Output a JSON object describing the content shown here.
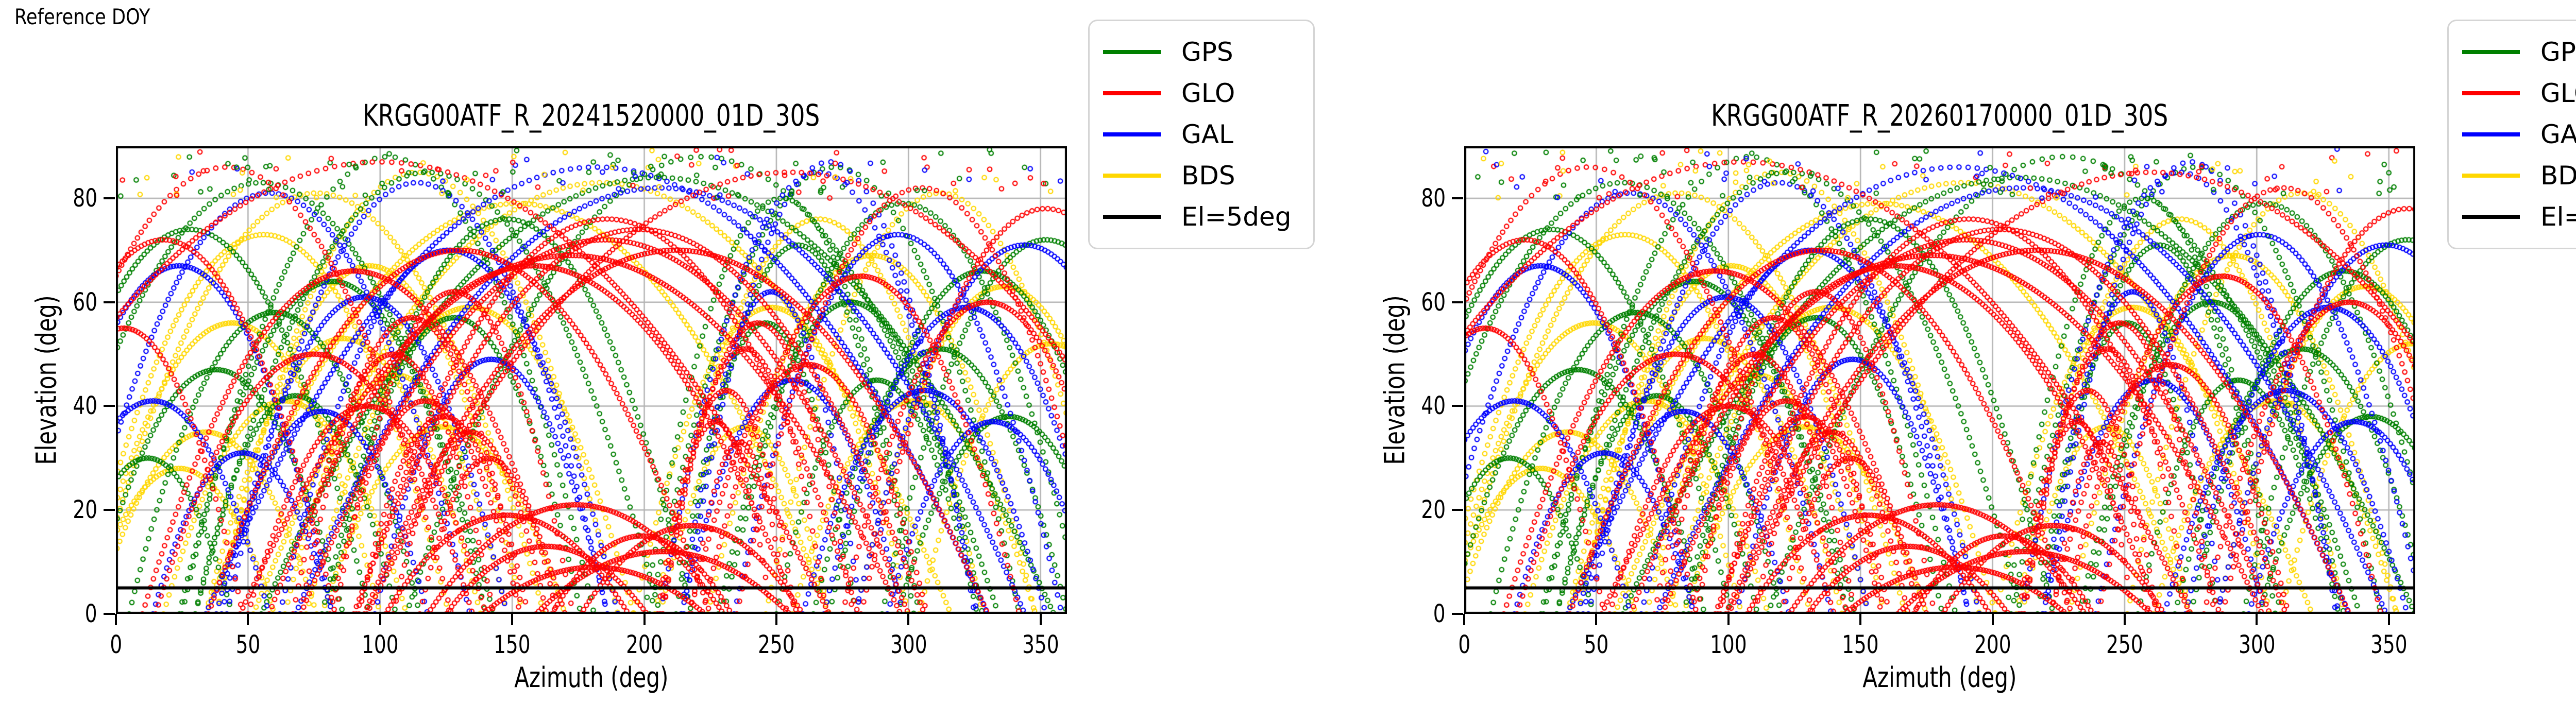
{
  "annotation": {
    "reference_doy": "Reference DOY"
  },
  "legend": {
    "items": [
      {
        "label": "GPS",
        "color": "#008000"
      },
      {
        "label": "GLO",
        "color": "#ff0000"
      },
      {
        "label": "GAL",
        "color": "#0000ff"
      },
      {
        "label": "BDS",
        "color": "#ffd700"
      },
      {
        "label": "El=5deg",
        "color": "#000000"
      }
    ]
  },
  "chart_data": {
    "type": "scatter",
    "marker": "open-circle",
    "xlabel": "Azimuth (deg)",
    "ylabel": "Elevation (deg)",
    "xlim": [
      0,
      360
    ],
    "ylim": [
      0,
      90
    ],
    "xticks": [
      0,
      50,
      100,
      150,
      200,
      250,
      300,
      350
    ],
    "yticks": [
      0,
      20,
      40,
      60,
      80
    ],
    "grid": true,
    "grid_color": "#b3b3b3",
    "elevation_cutoff_deg": 5,
    "cutoff_line_color": "#000000",
    "panels": [
      {
        "title": "KRGG00ATF_R_20241520000_01D_30S",
        "az_shift_deg": 0,
        "seed": 11
      },
      {
        "title": "KRGG00ATF_R_20260170000_01D_30S",
        "az_shift_deg": 5,
        "seed": 47
      }
    ],
    "track_format": "[azimuth_center_deg, azimuth_halfwidth_deg, peak_elevation_deg]; elevation(az)=peak*(1-((az-center)/halfwidth)^2), satellite arcs estimated from figure",
    "draw_order": [
      "BDS",
      "GPS",
      "GAL",
      "GLO"
    ],
    "series": [
      {
        "name": "GPS",
        "color": "#008000",
        "tracks": [
          [
            28,
            68,
            74
          ],
          [
            55,
            88,
            83
          ],
          [
            82,
            58,
            64
          ],
          [
            103,
            78,
            88
          ],
          [
            128,
            48,
            57
          ],
          [
            148,
            70,
            76
          ],
          [
            258,
            44,
            71
          ],
          [
            272,
            70,
            86
          ],
          [
            298,
            68,
            79
          ],
          [
            328,
            58,
            66
          ],
          [
            352,
            62,
            72
          ],
          [
            38,
            48,
            47
          ],
          [
            68,
            38,
            42
          ],
          [
            312,
            48,
            51
          ],
          [
            288,
            38,
            45
          ],
          [
            246,
            34,
            56
          ],
          [
            118,
            88,
            85
          ],
          [
            222,
            112,
            88
          ],
          [
            12,
            32,
            30
          ],
          [
            338,
            42,
            38
          ],
          [
            60,
            55,
            58
          ],
          [
            252,
            52,
            80
          ],
          [
            278,
            50,
            60
          ],
          [
            205,
            150,
            84
          ]
        ]
      },
      {
        "name": "GLO",
        "color": "#ff0000",
        "tracks": [
          [
            185,
            115,
            72
          ],
          [
            172,
            125,
            69
          ],
          [
            198,
            108,
            74
          ],
          [
            158,
            100,
            67
          ],
          [
            212,
            118,
            70
          ],
          [
            186,
            95,
            76
          ],
          [
            163,
            38,
            13
          ],
          [
            181,
            42,
            9
          ],
          [
            199,
            34,
            15
          ],
          [
            148,
            46,
            19
          ],
          [
            218,
            42,
            17
          ],
          [
            174,
            56,
            21
          ],
          [
            207,
            48,
            12
          ],
          [
            124,
            32,
            38
          ],
          [
            134,
            29,
            35
          ],
          [
            117,
            36,
            41
          ],
          [
            141,
            26,
            30
          ],
          [
            231,
            26,
            43
          ],
          [
            238,
            31,
            51
          ],
          [
            227,
            21,
            37
          ],
          [
            243,
            36,
            56
          ],
          [
            236,
            18,
            33
          ],
          [
            18,
            65,
            72
          ],
          [
            42,
            85,
            86
          ],
          [
            3,
            45,
            55
          ],
          [
            352,
            70,
            78
          ],
          [
            330,
            55,
            60
          ],
          [
            75,
            60,
            50
          ],
          [
            95,
            45,
            40
          ],
          [
            282,
            60,
            65
          ],
          [
            305,
            70,
            82
          ],
          [
            262,
            45,
            48
          ],
          [
            100,
            170,
            87
          ],
          [
            255,
            160,
            85
          ],
          [
            112,
            42,
            57
          ],
          [
            105,
            38,
            50
          ],
          [
            128,
            45,
            62
          ],
          [
            130,
            95,
            70
          ],
          [
            90,
            80,
            66
          ]
        ]
      },
      {
        "name": "GAL",
        "color": "#0000ff",
        "tracks": [
          [
            24,
            58,
            67
          ],
          [
            58,
            76,
            81
          ],
          [
            94,
            54,
            61
          ],
          [
            114,
            72,
            83
          ],
          [
            142,
            44,
            49
          ],
          [
            248,
            34,
            62
          ],
          [
            266,
            60,
            85
          ],
          [
            296,
            62,
            73
          ],
          [
            322,
            54,
            59
          ],
          [
            344,
            64,
            71
          ],
          [
            78,
            40,
            39
          ],
          [
            256,
            42,
            45
          ],
          [
            182,
            148,
            86
          ],
          [
            206,
            138,
            82
          ],
          [
            14,
            44,
            41
          ],
          [
            306,
            46,
            43
          ],
          [
            48,
            34,
            31
          ],
          [
            332,
            40,
            37
          ],
          [
            126,
            64,
            70
          ],
          [
            270,
            55,
            87
          ]
        ]
      },
      {
        "name": "BDS",
        "color": "#ffd700",
        "tracks": [
          [
            56,
            70,
            73
          ],
          [
            76,
            86,
            81
          ],
          [
            96,
            58,
            67
          ],
          [
            114,
            76,
            85
          ],
          [
            64,
            46,
            41
          ],
          [
            86,
            52,
            53
          ],
          [
            106,
            42,
            46
          ],
          [
            134,
            62,
            59
          ],
          [
            124,
            46,
            36
          ],
          [
            44,
            56,
            56
          ],
          [
            34,
            42,
            35
          ],
          [
            248,
            52,
            59
          ],
          [
            266,
            62,
            76
          ],
          [
            286,
            62,
            69
          ],
          [
            312,
            66,
            81
          ],
          [
            336,
            56,
            63
          ],
          [
            302,
            46,
            41
          ],
          [
            238,
            32,
            36
          ],
          [
            152,
            118,
            79
          ],
          [
            184,
            132,
            83
          ],
          [
            24,
            36,
            28
          ],
          [
            354,
            50,
            52
          ]
        ]
      }
    ],
    "zenith_scatter": {
      "count": 150,
      "elevation_range": [
        80,
        89.5
      ],
      "azimuth_range": [
        0,
        360
      ]
    }
  }
}
